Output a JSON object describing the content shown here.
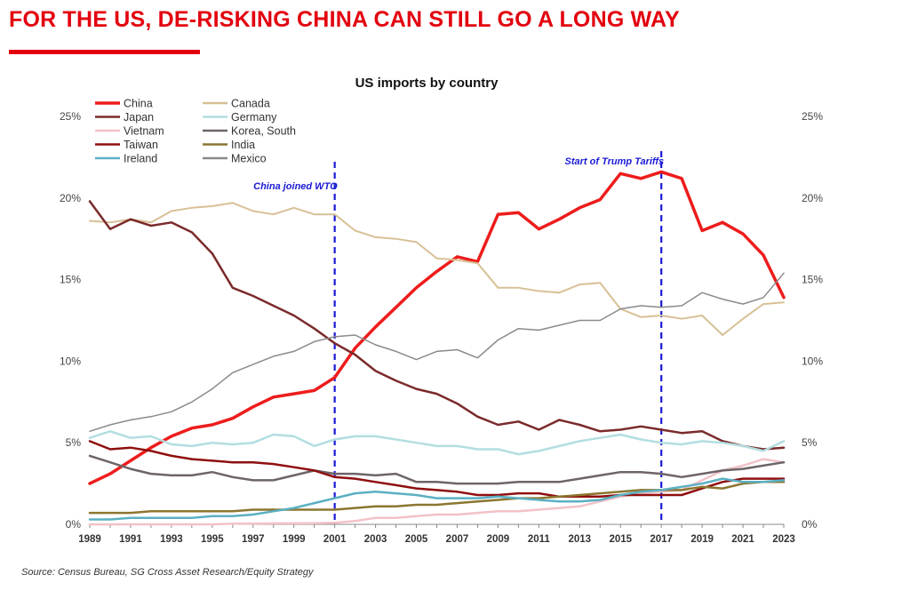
{
  "page": {
    "headline": "FOR THE US, DE-RISKING CHINA CAN STILL GO A LONG WAY",
    "source": "Source:  Census Bureau, SG Cross Asset Research/Equity Strategy"
  },
  "chart_data": {
    "type": "line",
    "title": "US imports by country",
    "xlabel": "",
    "ylabel": "",
    "ylim": [
      0,
      25
    ],
    "yticks": [
      "0%",
      "5%",
      "10%",
      "15%",
      "20%",
      "25%"
    ],
    "y_axis_both_sides": true,
    "grid": false,
    "legend_position": "top-left",
    "x": [
      1989,
      1990,
      1991,
      1992,
      1993,
      1994,
      1995,
      1996,
      1997,
      1998,
      1999,
      2000,
      2001,
      2002,
      2003,
      2004,
      2005,
      2006,
      2007,
      2008,
      2009,
      2010,
      2011,
      2012,
      2013,
      2014,
      2015,
      2016,
      2017,
      2018,
      2019,
      2020,
      2021,
      2022,
      2023
    ],
    "xtick_labels": [
      "1989",
      "1991",
      "1993",
      "1995",
      "1997",
      "1999",
      "2001",
      "2003",
      "2005",
      "2007",
      "2009",
      "2011",
      "2013",
      "2015",
      "2017",
      "2019",
      "2021",
      "2023"
    ],
    "annotations": [
      {
        "x": 2001,
        "text": "China joined WTO",
        "color": "#1a1ad6"
      },
      {
        "x": 2017,
        "text": "Start of Trump Tariffs",
        "color": "#1a1ad6"
      }
    ],
    "series": [
      {
        "name": "China",
        "color": "#ee1c1c",
        "width": 3.5,
        "values": [
          2.5,
          3.1,
          3.9,
          4.7,
          5.4,
          5.9,
          6.1,
          6.5,
          7.2,
          7.8,
          8.0,
          8.2,
          9.0,
          10.8,
          12.1,
          13.3,
          14.5,
          15.5,
          16.4,
          16.1,
          19.0,
          19.1,
          18.1,
          18.7,
          19.4,
          19.9,
          21.5,
          21.2,
          21.6,
          21.2,
          18.0,
          18.5,
          17.8,
          16.5,
          13.9
        ]
      },
      {
        "name": "Canada",
        "color": "#d8c096",
        "width": 2,
        "values": [
          18.6,
          18.5,
          18.7,
          18.5,
          19.2,
          19.4,
          19.5,
          19.7,
          19.2,
          19.0,
          19.4,
          19.0,
          19.0,
          18.0,
          17.6,
          17.5,
          17.3,
          16.3,
          16.2,
          16.0,
          14.5,
          14.5,
          14.3,
          14.2,
          14.7,
          14.8,
          13.2,
          12.7,
          12.8,
          12.6,
          12.8,
          11.6,
          12.6,
          13.5,
          13.6
        ]
      },
      {
        "name": "Japan",
        "color": "#7b2a2a",
        "width": 2.5,
        "values": [
          19.8,
          18.1,
          18.7,
          18.3,
          18.5,
          17.9,
          16.6,
          14.5,
          14.0,
          13.4,
          12.8,
          12.0,
          11.1,
          10.4,
          9.4,
          8.8,
          8.3,
          8.0,
          7.4,
          6.6,
          6.1,
          6.3,
          5.8,
          6.4,
          6.1,
          5.7,
          5.8,
          6.0,
          5.8,
          5.6,
          5.7,
          5.1,
          4.8,
          4.6,
          4.7
        ]
      },
      {
        "name": "Germany",
        "color": "#b3dee0",
        "width": 2.5,
        "values": [
          5.3,
          5.7,
          5.3,
          5.4,
          4.9,
          4.8,
          5.0,
          4.9,
          5.0,
          5.5,
          5.4,
          4.8,
          5.2,
          5.4,
          5.4,
          5.2,
          5.0,
          4.8,
          4.8,
          4.6,
          4.6,
          4.3,
          4.5,
          4.8,
          5.1,
          5.3,
          5.5,
          5.2,
          5.0,
          4.9,
          5.1,
          5.0,
          4.8,
          4.5,
          5.1
        ]
      },
      {
        "name": "Vietnam",
        "color": "#f2c2c8",
        "width": 2.5,
        "values": [
          0,
          0,
          0,
          0,
          0,
          0,
          0,
          0.04,
          0.05,
          0.06,
          0.06,
          0.07,
          0.1,
          0.2,
          0.4,
          0.4,
          0.5,
          0.6,
          0.6,
          0.7,
          0.8,
          0.8,
          0.9,
          1.0,
          1.1,
          1.4,
          1.7,
          1.9,
          2.0,
          2.1,
          2.7,
          3.3,
          3.6,
          4.0,
          3.8
        ]
      },
      {
        "name": "Korea, South",
        "color": "#6e6468",
        "width": 2.5,
        "values": [
          4.2,
          3.8,
          3.4,
          3.1,
          3.0,
          3.0,
          3.2,
          2.9,
          2.7,
          2.7,
          3.0,
          3.3,
          3.1,
          3.1,
          3.0,
          3.1,
          2.6,
          2.6,
          2.5,
          2.5,
          2.5,
          2.6,
          2.6,
          2.6,
          2.8,
          3.0,
          3.2,
          3.2,
          3.1,
          2.9,
          3.1,
          3.3,
          3.4,
          3.6,
          3.8
        ]
      },
      {
        "name": "Taiwan",
        "color": "#8f0e0e",
        "width": 2.5,
        "values": [
          5.1,
          4.6,
          4.7,
          4.5,
          4.2,
          4.0,
          3.9,
          3.8,
          3.8,
          3.7,
          3.5,
          3.3,
          2.9,
          2.8,
          2.6,
          2.4,
          2.2,
          2.1,
          2.0,
          1.8,
          1.8,
          1.9,
          1.9,
          1.7,
          1.7,
          1.7,
          1.8,
          1.8,
          1.8,
          1.8,
          2.2,
          2.6,
          2.8,
          2.8,
          2.8
        ]
      },
      {
        "name": "India",
        "color": "#8c7630",
        "width": 2.5,
        "values": [
          0.7,
          0.7,
          0.7,
          0.8,
          0.8,
          0.8,
          0.8,
          0.8,
          0.9,
          0.9,
          0.9,
          0.9,
          0.9,
          1.0,
          1.1,
          1.1,
          1.2,
          1.2,
          1.3,
          1.4,
          1.5,
          1.6,
          1.6,
          1.7,
          1.8,
          1.9,
          2.0,
          2.1,
          2.1,
          2.1,
          2.3,
          2.2,
          2.5,
          2.6,
          2.6
        ]
      },
      {
        "name": "Ireland",
        "color": "#5bb0c3",
        "width": 2.5,
        "values": [
          0.3,
          0.3,
          0.4,
          0.4,
          0.4,
          0.4,
          0.5,
          0.5,
          0.6,
          0.8,
          1.0,
          1.3,
          1.6,
          1.9,
          2.0,
          1.9,
          1.8,
          1.6,
          1.6,
          1.6,
          1.7,
          1.6,
          1.5,
          1.4,
          1.4,
          1.5,
          1.8,
          2.0,
          2.1,
          2.3,
          2.5,
          2.8,
          2.6,
          2.6,
          2.7
        ]
      },
      {
        "name": "Mexico",
        "color": "#8a8a8a",
        "width": 1.5,
        "values": [
          5.7,
          6.1,
          6.4,
          6.6,
          6.9,
          7.5,
          8.3,
          9.3,
          9.8,
          10.3,
          10.6,
          11.2,
          11.5,
          11.6,
          11.0,
          10.6,
          10.1,
          10.6,
          10.7,
          10.2,
          11.3,
          12.0,
          11.9,
          12.2,
          12.5,
          12.5,
          13.2,
          13.4,
          13.3,
          13.4,
          14.2,
          13.8,
          13.5,
          13.9,
          15.4
        ]
      }
    ]
  }
}
